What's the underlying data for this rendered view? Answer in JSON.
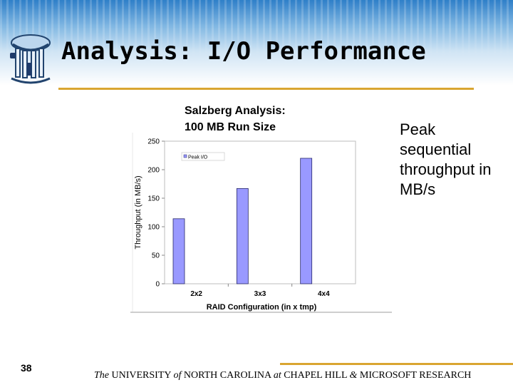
{
  "slide": {
    "title": "Analysis: I/O Performance",
    "chart_heading": [
      "Salzberg Analysis:",
      "100 MB Run Size"
    ],
    "side_text": [
      "Peak",
      "sequential",
      "throughput in",
      "MB/s"
    ],
    "slide_number": "38",
    "footer": {
      "the": "The",
      "university": " UNIVERSITY ",
      "of": "of",
      "nc": " NORTH CAROLINA ",
      "at": "at",
      "chapel": " CHAPEL HILL ",
      "amp": "&",
      "ms": " MICROSOFT RESEARCH"
    },
    "colors": {
      "accent_rule": "#d9a531",
      "header_blue": "#2f7fc8",
      "bar_fill": "#9999ff",
      "bar_stroke": "#2a2a6a"
    },
    "logo_icon": "old-well-rotunda-icon"
  },
  "chart_data": {
    "type": "bar",
    "categories": [
      "2x2",
      "3x3",
      "4x4"
    ],
    "series": [
      {
        "name": "Peak I/O",
        "values": [
          114,
          167,
          220
        ]
      }
    ],
    "xlabel": "RAID Configuration (in x tmp)",
    "ylabel": "Throughput (in MB/s)",
    "ylim": [
      0,
      250
    ],
    "yticks": [
      0,
      50,
      100,
      150,
      200,
      250
    ],
    "grid": false,
    "legend": "top-left"
  }
}
